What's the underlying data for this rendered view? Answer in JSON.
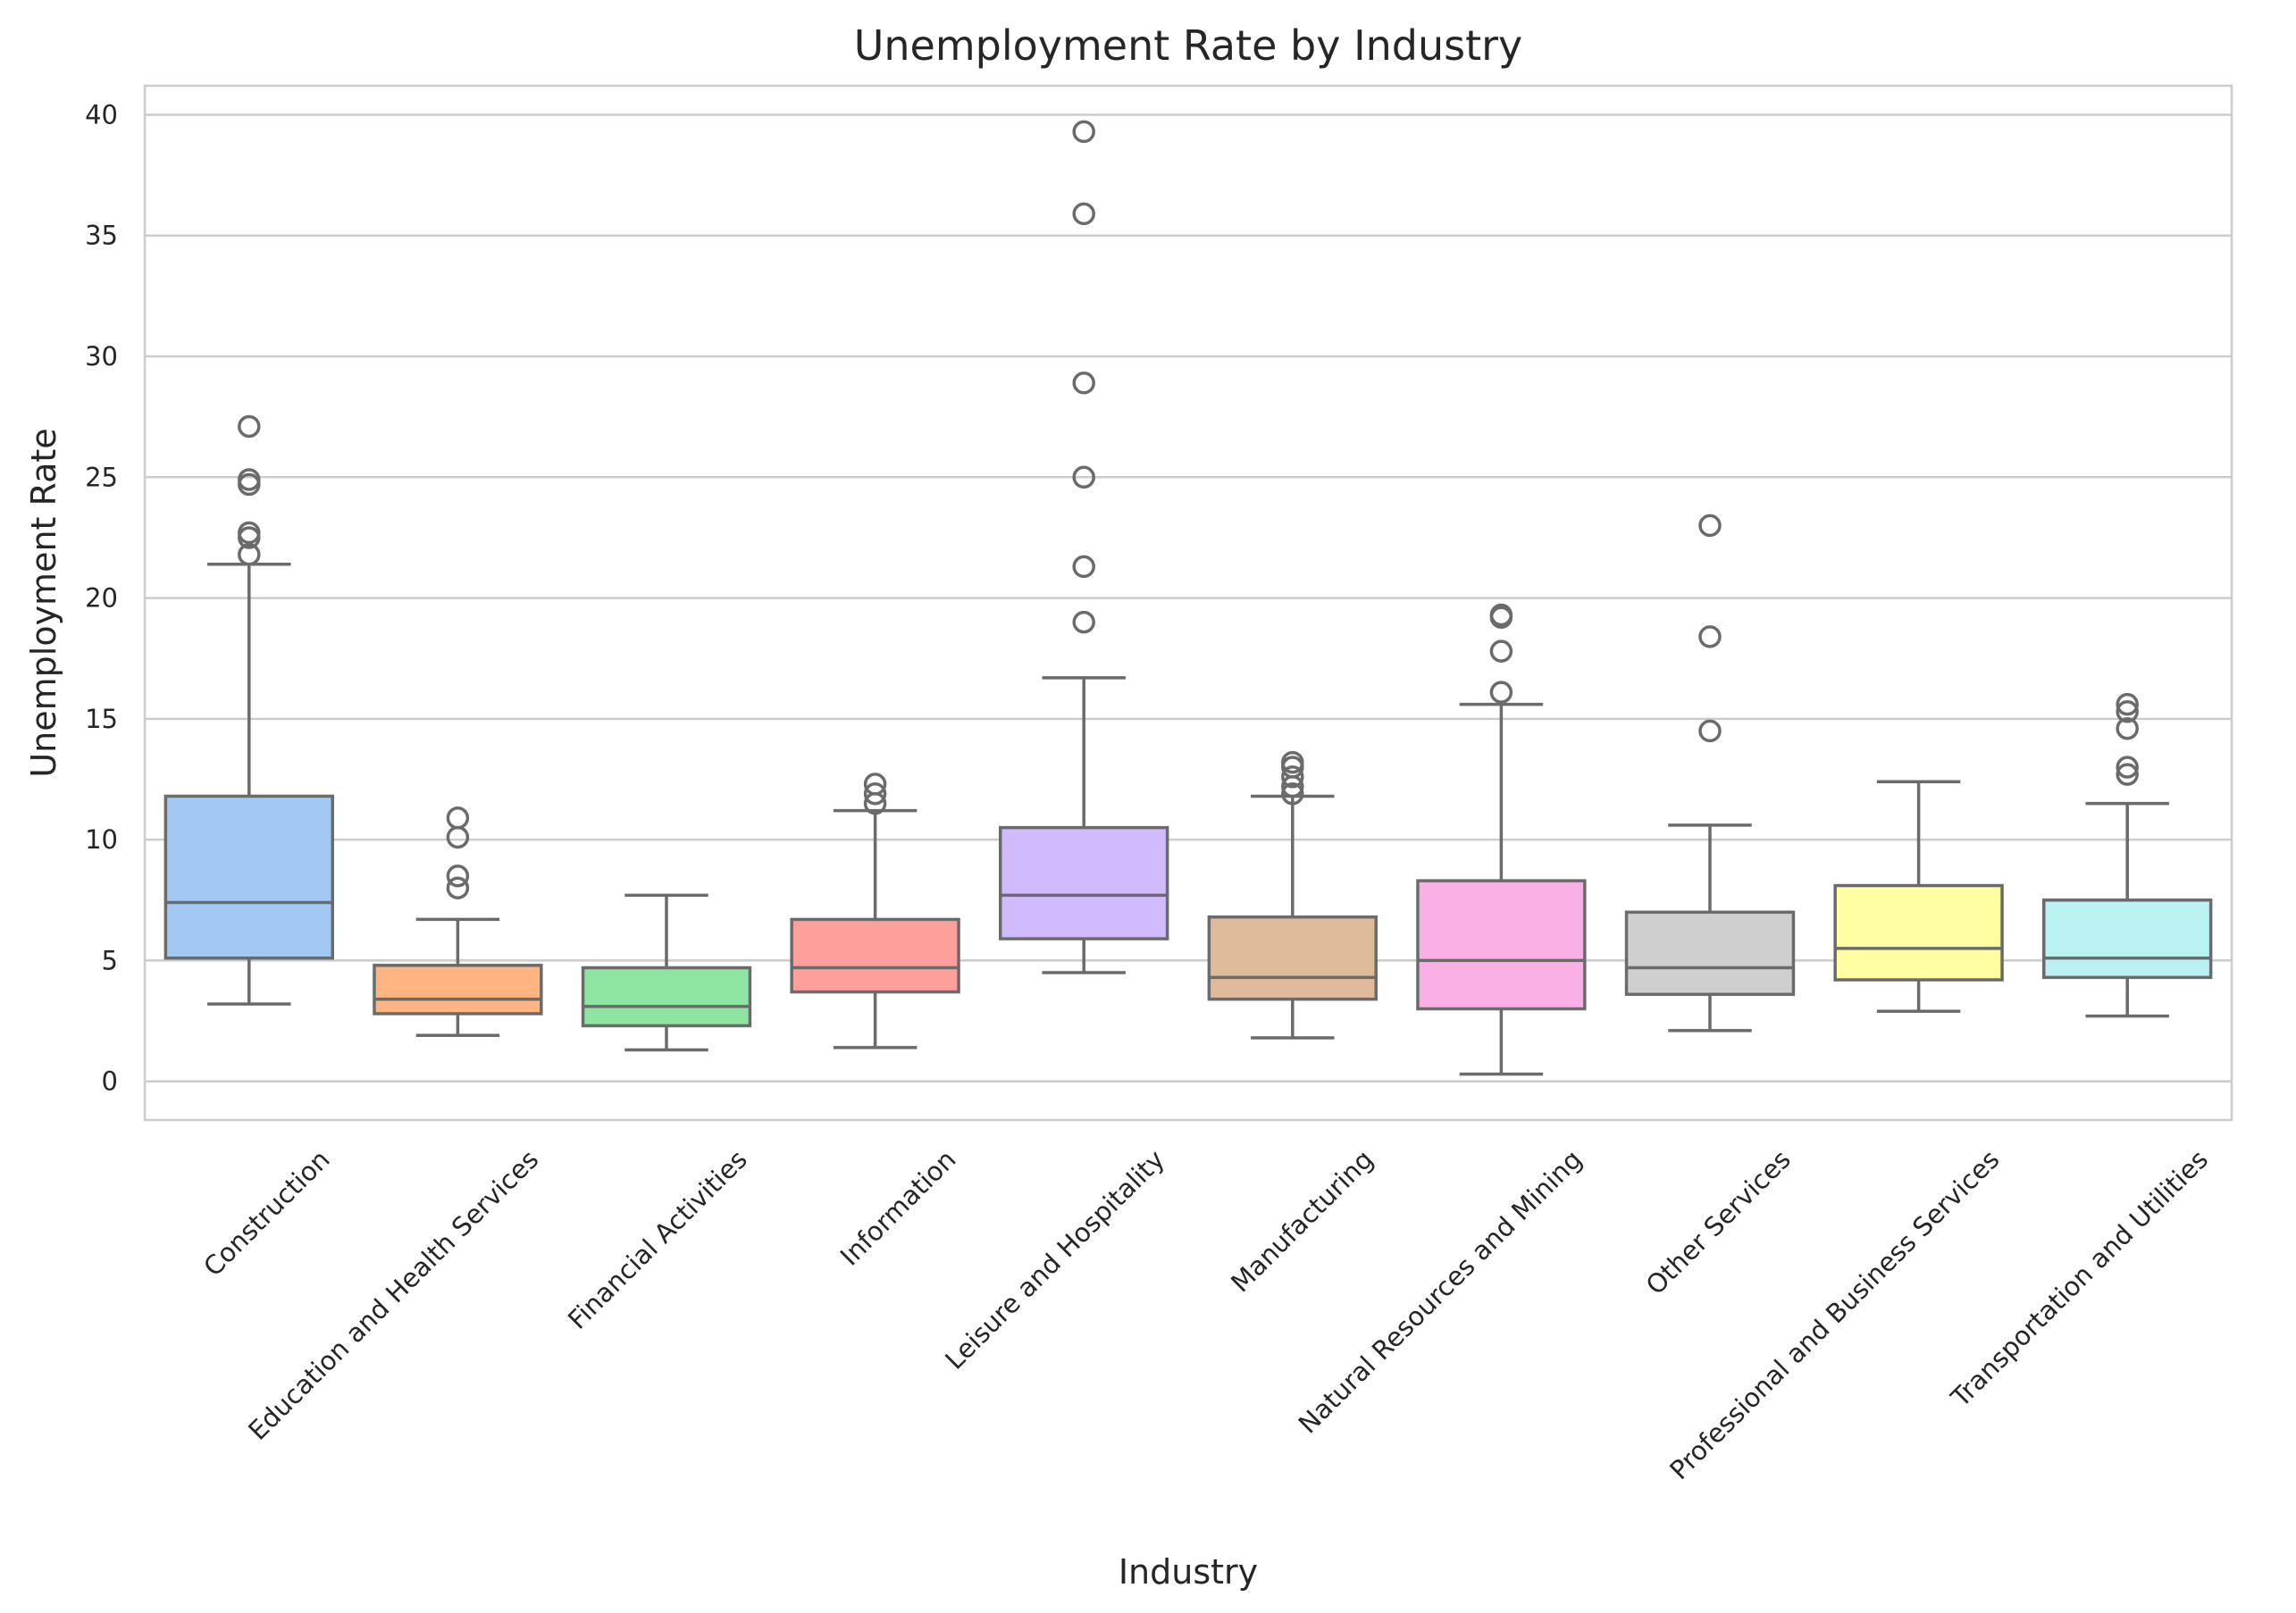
{
  "chart_data": {
    "type": "box",
    "title": "Unemployment Rate by Industry",
    "xlabel": "Industry",
    "ylabel": "Unemployment Rate",
    "ylim": [
      -1.6,
      41.2
    ],
    "yticks": [
      0,
      5,
      10,
      15,
      20,
      25,
      30,
      35,
      40
    ],
    "grid": "horizontal",
    "x_tick_rotation": 45,
    "style": {
      "box_edge_color": "#6b6b6b",
      "grid_color": "#cccccc",
      "frame_color": "#cccccc",
      "background": "#ffffff"
    },
    "categories": [
      "Construction",
      "Education and Health Services",
      "Financial Activities",
      "Information",
      "Leisure and Hospitality",
      "Manufacturing",
      "Natural Resources and Mining",
      "Other Services",
      "Professional and Business Services",
      "Transportation and Utilities"
    ],
    "series": [
      {
        "category": "Construction",
        "color": "#a1c9f4",
        "whisker_low": 3.2,
        "q1": 5.1,
        "median": 7.4,
        "q3": 11.8,
        "whisker_high": 21.4,
        "outliers": [
          21.8,
          22.5,
          22.7,
          24.7,
          24.9,
          27.1
        ]
      },
      {
        "category": "Education and Health Services",
        "color": "#ffb482",
        "whisker_low": 1.9,
        "q1": 2.8,
        "median": 3.4,
        "q3": 4.8,
        "whisker_high": 6.7,
        "outliers": [
          8.0,
          8.5,
          10.1,
          10.9
        ]
      },
      {
        "category": "Financial Activities",
        "color": "#8de5a1",
        "whisker_low": 1.3,
        "q1": 2.3,
        "median": 3.1,
        "q3": 4.7,
        "whisker_high": 7.7,
        "outliers": []
      },
      {
        "category": "Information",
        "color": "#ff9f9b",
        "whisker_low": 1.4,
        "q1": 3.7,
        "median": 4.7,
        "q3": 6.7,
        "whisker_high": 11.2,
        "outliers": [
          11.5,
          11.9,
          12.3
        ]
      },
      {
        "category": "Leisure and Hospitality",
        "color": "#d0bbff",
        "whisker_low": 4.5,
        "q1": 5.9,
        "median": 7.7,
        "q3": 10.5,
        "whisker_high": 16.7,
        "outliers": [
          19.0,
          21.3,
          25.0,
          28.9,
          35.9,
          39.3
        ]
      },
      {
        "category": "Manufacturing",
        "color": "#debb9b",
        "whisker_low": 1.8,
        "q1": 3.4,
        "median": 4.3,
        "q3": 6.8,
        "whisker_high": 11.8,
        "outliers": [
          11.9,
          12.2,
          12.6,
          13.0,
          13.2
        ]
      },
      {
        "category": "Natural Resources and Mining",
        "color": "#fab0e4",
        "whisker_low": 0.3,
        "q1": 3.0,
        "median": 5.0,
        "q3": 8.3,
        "whisker_high": 15.6,
        "outliers": [
          16.1,
          17.8,
          19.2,
          19.3
        ]
      },
      {
        "category": "Other Services",
        "color": "#cfcfcf",
        "whisker_low": 2.1,
        "q1": 3.6,
        "median": 4.7,
        "q3": 7.0,
        "whisker_high": 10.6,
        "outliers": [
          14.5,
          18.4,
          23.0
        ]
      },
      {
        "category": "Professional and Business Services",
        "color": "#fffea3",
        "whisker_low": 2.9,
        "q1": 4.2,
        "median": 5.5,
        "q3": 8.1,
        "whisker_high": 12.4,
        "outliers": []
      },
      {
        "category": "Transportation and Utilities",
        "color": "#b9f2f0",
        "whisker_low": 2.7,
        "q1": 4.3,
        "median": 5.1,
        "q3": 7.5,
        "whisker_high": 11.5,
        "outliers": [
          12.7,
          13.0,
          14.6,
          15.3,
          15.6
        ]
      }
    ]
  }
}
